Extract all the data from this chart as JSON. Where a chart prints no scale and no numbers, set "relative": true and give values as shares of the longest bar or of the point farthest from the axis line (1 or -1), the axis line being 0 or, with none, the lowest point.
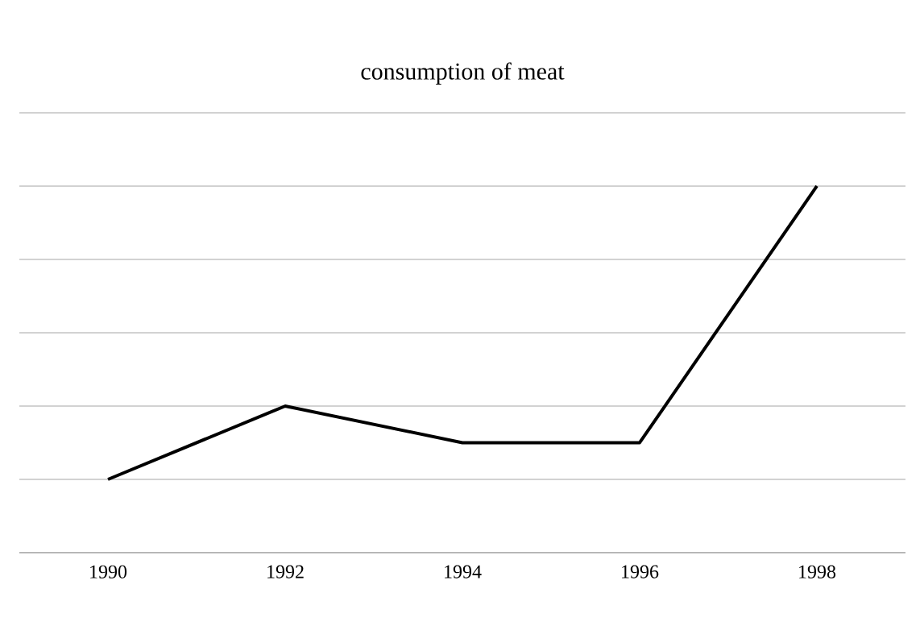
{
  "chart_data": {
    "type": "line",
    "title": "consumption of meat",
    "categories": [
      "1990",
      "1992",
      "1994",
      "1996",
      "1998"
    ],
    "values": [
      0.2,
      0.4,
      0.3,
      0.3,
      1.0
    ],
    "color": "#000000",
    "relative": true,
    "grid": "y"
  }
}
